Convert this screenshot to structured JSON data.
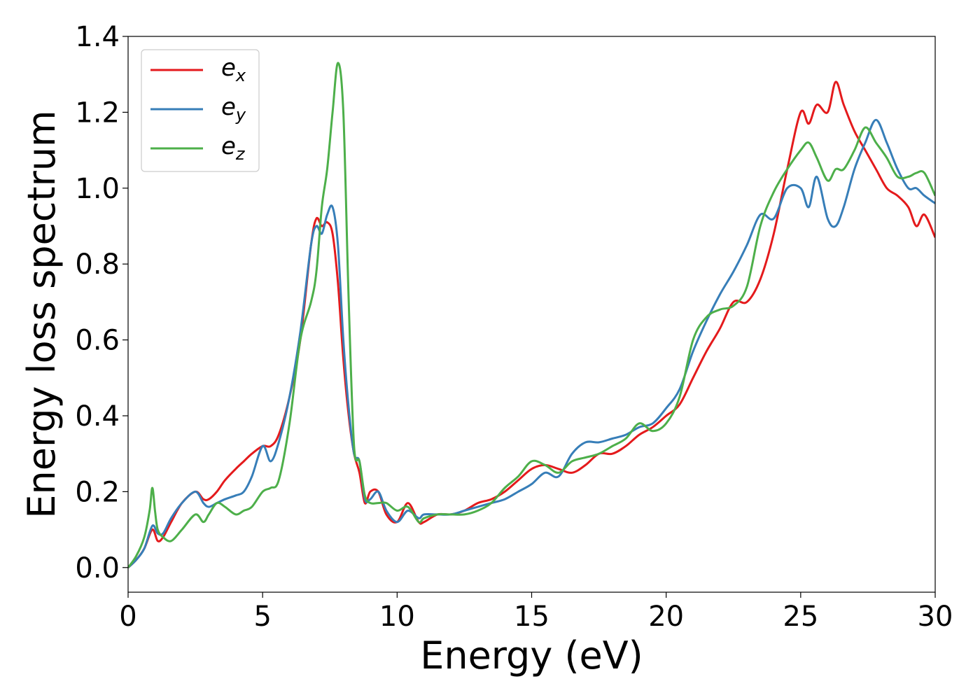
{
  "chart_data": {
    "type": "line",
    "xlabel": "Energy (eV)",
    "ylabel": "Energy loss spectrum",
    "xlim": [
      0,
      30
    ],
    "ylim": [
      -0.065,
      1.4
    ],
    "xticks": [
      0,
      5,
      10,
      15,
      20,
      25,
      30
    ],
    "xtick_labels": [
      "0",
      "5",
      "10",
      "15",
      "20",
      "25",
      "30"
    ],
    "yticks": [
      0.0,
      0.2,
      0.4,
      0.6,
      0.8,
      1.0,
      1.2,
      1.4
    ],
    "ytick_labels": [
      "0.0",
      "0.2",
      "0.4",
      "0.6",
      "0.8",
      "1.0",
      "1.2",
      "1.4"
    ],
    "grid": false,
    "legend_position": "top-left",
    "series": [
      {
        "name": "e_x",
        "label_base": "e",
        "label_sub": "x",
        "color": "#e41a1c",
        "x": [
          0,
          0.3,
          0.6,
          0.9,
          1.1,
          1.3,
          1.6,
          2.0,
          2.5,
          2.8,
          3.0,
          3.3,
          3.6,
          4.0,
          4.3,
          4.6,
          5.0,
          5.3,
          5.6,
          6.0,
          6.4,
          6.8,
          7.0,
          7.2,
          7.4,
          7.6,
          7.8,
          8.0,
          8.2,
          8.4,
          8.6,
          8.8,
          9.0,
          9.3,
          9.6,
          10.0,
          10.4,
          10.8,
          11.0,
          11.5,
          12.0,
          12.5,
          13.0,
          13.5,
          14.0,
          14.5,
          15.0,
          15.5,
          16.0,
          16.5,
          17.0,
          17.5,
          18.0,
          18.5,
          19.0,
          19.5,
          20.0,
          20.5,
          21.0,
          21.5,
          22.0,
          22.5,
          23.0,
          23.5,
          24.0,
          24.5,
          25.0,
          25.3,
          25.6,
          26.0,
          26.3,
          26.6,
          27.0,
          27.4,
          27.8,
          28.2,
          28.6,
          29.0,
          29.3,
          29.6,
          30.0
        ],
        "y": [
          0.0,
          0.02,
          0.05,
          0.1,
          0.07,
          0.08,
          0.12,
          0.17,
          0.2,
          0.18,
          0.18,
          0.2,
          0.23,
          0.26,
          0.28,
          0.3,
          0.32,
          0.32,
          0.35,
          0.45,
          0.6,
          0.85,
          0.92,
          0.9,
          0.91,
          0.88,
          0.75,
          0.55,
          0.4,
          0.3,
          0.25,
          0.17,
          0.2,
          0.2,
          0.14,
          0.12,
          0.17,
          0.12,
          0.12,
          0.14,
          0.14,
          0.15,
          0.17,
          0.18,
          0.2,
          0.23,
          0.26,
          0.27,
          0.26,
          0.25,
          0.27,
          0.3,
          0.3,
          0.32,
          0.35,
          0.37,
          0.4,
          0.43,
          0.5,
          0.57,
          0.63,
          0.7,
          0.7,
          0.76,
          0.88,
          1.05,
          1.2,
          1.17,
          1.22,
          1.2,
          1.28,
          1.22,
          1.15,
          1.1,
          1.05,
          1.0,
          0.98,
          0.95,
          0.9,
          0.93,
          0.87
        ]
      },
      {
        "name": "e_y",
        "label_base": "e",
        "label_sub": "y",
        "color": "#377eb8",
        "x": [
          0,
          0.3,
          0.6,
          0.9,
          1.1,
          1.3,
          1.6,
          2.0,
          2.5,
          2.8,
          3.0,
          3.3,
          3.6,
          4.0,
          4.3,
          4.6,
          5.0,
          5.3,
          5.6,
          6.0,
          6.4,
          6.8,
          7.0,
          7.2,
          7.4,
          7.6,
          7.8,
          8.0,
          8.2,
          8.4,
          8.6,
          8.8,
          9.0,
          9.3,
          9.6,
          10.0,
          10.4,
          10.8,
          11.0,
          11.5,
          12.0,
          12.5,
          13.0,
          13.5,
          14.0,
          14.5,
          15.0,
          15.5,
          16.0,
          16.5,
          17.0,
          17.5,
          18.0,
          18.5,
          19.0,
          19.5,
          20.0,
          20.5,
          21.0,
          21.5,
          22.0,
          22.5,
          23.0,
          23.5,
          24.0,
          24.5,
          25.0,
          25.3,
          25.6,
          26.0,
          26.3,
          26.6,
          27.0,
          27.4,
          27.8,
          28.2,
          28.6,
          29.0,
          29.3,
          29.6,
          30.0
        ],
        "y": [
          0.0,
          0.02,
          0.05,
          0.11,
          0.09,
          0.09,
          0.13,
          0.17,
          0.2,
          0.17,
          0.16,
          0.17,
          0.18,
          0.19,
          0.2,
          0.24,
          0.32,
          0.28,
          0.33,
          0.45,
          0.62,
          0.85,
          0.9,
          0.88,
          0.93,
          0.95,
          0.85,
          0.6,
          0.42,
          0.3,
          0.28,
          0.18,
          0.18,
          0.2,
          0.15,
          0.12,
          0.15,
          0.13,
          0.14,
          0.14,
          0.14,
          0.15,
          0.16,
          0.17,
          0.18,
          0.2,
          0.22,
          0.25,
          0.24,
          0.3,
          0.33,
          0.33,
          0.34,
          0.35,
          0.37,
          0.38,
          0.42,
          0.47,
          0.57,
          0.65,
          0.72,
          0.78,
          0.85,
          0.93,
          0.92,
          1.0,
          1.0,
          0.95,
          1.03,
          0.92,
          0.9,
          0.95,
          1.05,
          1.12,
          1.18,
          1.12,
          1.05,
          1.0,
          1.0,
          0.98,
          0.96
        ]
      },
      {
        "name": "e_z",
        "label_base": "e",
        "label_sub": "z",
        "color": "#4daf4a",
        "x": [
          0,
          0.3,
          0.6,
          0.8,
          0.9,
          1.0,
          1.1,
          1.3,
          1.6,
          2.0,
          2.5,
          2.8,
          3.0,
          3.3,
          3.6,
          4.0,
          4.3,
          4.6,
          5.0,
          5.3,
          5.6,
          6.0,
          6.4,
          6.8,
          7.0,
          7.2,
          7.4,
          7.6,
          7.8,
          8.0,
          8.2,
          8.4,
          8.6,
          8.8,
          9.0,
          9.3,
          9.6,
          10.0,
          10.4,
          10.8,
          11.0,
          11.5,
          12.0,
          12.5,
          13.0,
          13.5,
          14.0,
          14.5,
          15.0,
          15.5,
          16.0,
          16.5,
          17.0,
          17.5,
          18.0,
          18.5,
          19.0,
          19.5,
          20.0,
          20.5,
          21.0,
          21.5,
          22.0,
          22.5,
          23.0,
          23.5,
          24.0,
          24.5,
          25.0,
          25.3,
          25.6,
          26.0,
          26.3,
          26.6,
          27.0,
          27.4,
          27.8,
          28.2,
          28.6,
          29.0,
          29.3,
          29.6,
          30.0
        ],
        "y": [
          0.0,
          0.03,
          0.08,
          0.15,
          0.21,
          0.15,
          0.1,
          0.08,
          0.07,
          0.1,
          0.14,
          0.12,
          0.14,
          0.17,
          0.16,
          0.14,
          0.15,
          0.16,
          0.2,
          0.21,
          0.23,
          0.38,
          0.6,
          0.7,
          0.78,
          0.95,
          1.05,
          1.2,
          1.33,
          1.2,
          0.7,
          0.32,
          0.28,
          0.19,
          0.17,
          0.17,
          0.17,
          0.15,
          0.16,
          0.12,
          0.13,
          0.14,
          0.14,
          0.14,
          0.15,
          0.17,
          0.21,
          0.24,
          0.28,
          0.27,
          0.25,
          0.28,
          0.29,
          0.3,
          0.32,
          0.34,
          0.38,
          0.36,
          0.38,
          0.45,
          0.6,
          0.66,
          0.68,
          0.69,
          0.74,
          0.9,
          0.99,
          1.05,
          1.1,
          1.12,
          1.08,
          1.02,
          1.05,
          1.05,
          1.1,
          1.16,
          1.12,
          1.08,
          1.03,
          1.03,
          1.04,
          1.04,
          0.98
        ]
      }
    ]
  }
}
